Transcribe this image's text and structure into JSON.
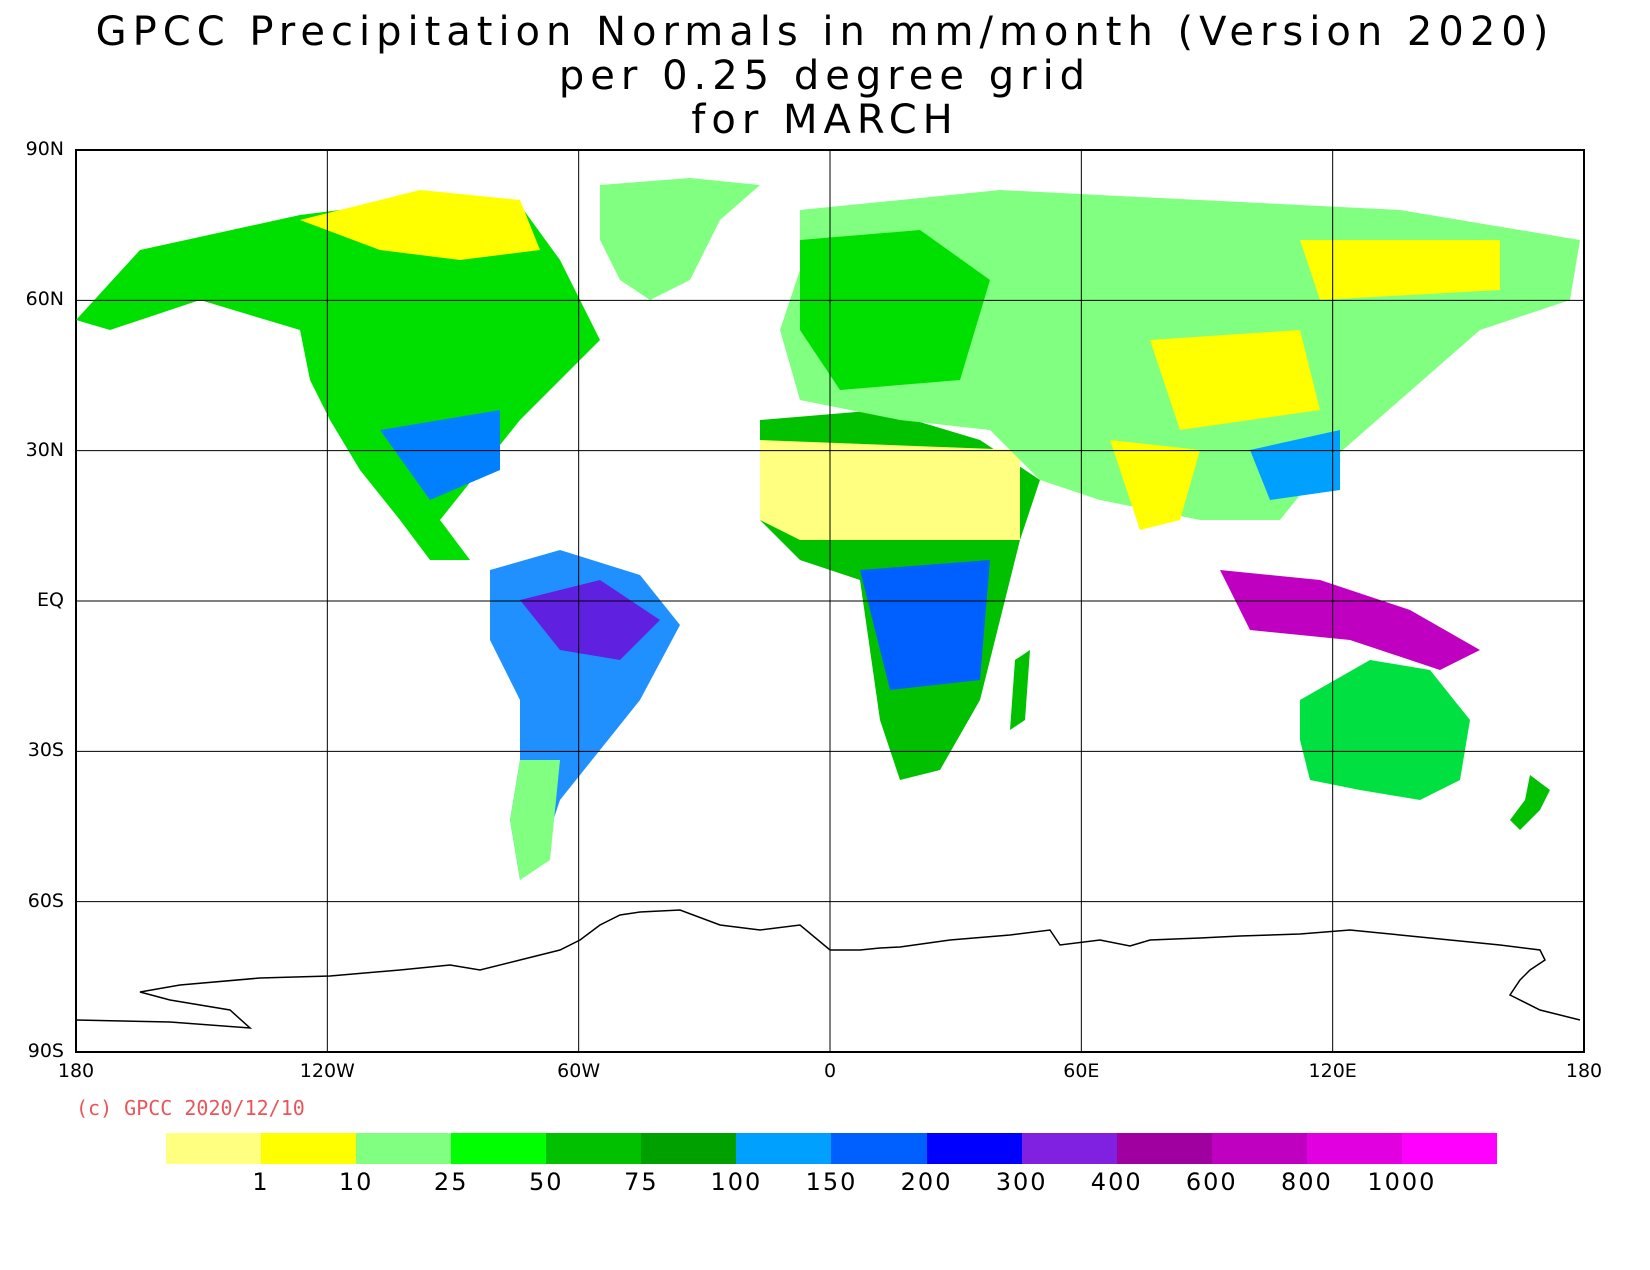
{
  "title": {
    "line1": "GPCC Precipitation Normals in mm/month (Version 2020)",
    "line2": "per 0.25 degree grid",
    "line3": "for MARCH"
  },
  "axes": {
    "lat_labels": [
      "90N",
      "60N",
      "30N",
      "EQ",
      "30S",
      "60S",
      "90S"
    ],
    "lon_labels": [
      "180",
      "120W",
      "60W",
      "0",
      "60E",
      "120E",
      "180"
    ]
  },
  "copyright": "(c) GPCC 2020/12/10",
  "colorbar": {
    "colors": [
      "#ffff80",
      "#ffff00",
      "#80ff80",
      "#00ff00",
      "#00c000",
      "#00a000",
      "#00a0ff",
      "#0060ff",
      "#0000ff",
      "#8020e0",
      "#a000a0",
      "#c000c0",
      "#e000e0",
      "#ff00ff"
    ],
    "labels": [
      "1",
      "10",
      "25",
      "50",
      "75",
      "100",
      "150",
      "200",
      "300",
      "400",
      "600",
      "800",
      "1000"
    ]
  },
  "regions": [
    {
      "name": "north-america",
      "color": "#00e000"
    },
    {
      "name": "south-america",
      "color": "#2090ff"
    },
    {
      "name": "amazon-core",
      "color": "#6020e0"
    },
    {
      "name": "africa",
      "color": "#00c000"
    },
    {
      "name": "sahara",
      "color": "#ffff80"
    },
    {
      "name": "congo-basin",
      "color": "#0060ff"
    },
    {
      "name": "eurasia",
      "color": "#80ff80"
    },
    {
      "name": "central-asia-dry",
      "color": "#ffff00"
    },
    {
      "name": "australia",
      "color": "#00e040"
    },
    {
      "name": "greenland",
      "color": "#80ff80"
    },
    {
      "name": "maritime-continent",
      "color": "#c000c0"
    }
  ]
}
